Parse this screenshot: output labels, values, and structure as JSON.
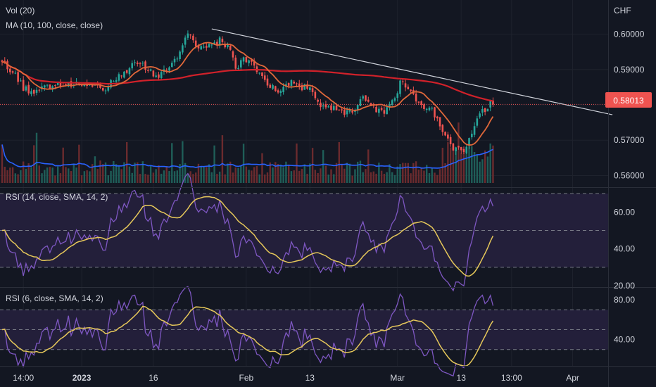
{
  "colors": {
    "background": "#131722",
    "candle_up": "#26a69a",
    "candle_down": "#ef5350",
    "ma_fast": "#e0683a",
    "ma_slow": "#d1212a",
    "trendline": "#d1d4dc",
    "price_line": "#ef5350",
    "rsi_line": "#7e57c2",
    "rsi_ma": "#e6c85a",
    "rsi_band": "#231f3a",
    "vol_ma": "#2962ff",
    "grid": "#1e222d"
  },
  "legend": {
    "volume": "Vol (20)",
    "ma": "MA (10, 100, close, close)",
    "rsi1": "RSI (14, close, SMA, 14, 2)",
    "rsi2": "RSI (6, close, SMA, 14, 2)"
  },
  "currency": "CHF",
  "price_badge": "0.58013",
  "chart_data": [
    {
      "type": "candlestick",
      "ylim": [
        0.5575,
        0.6045
      ],
      "yticks": [
        "0.60000",
        "0.59000",
        "0.58000",
        "0.57000",
        "0.56000"
      ],
      "last_price": 0.58013,
      "x_labels": [
        "14:00",
        "2023",
        "16",
        "Feb",
        "13",
        "Mar",
        "13",
        "13:00",
        "Apr"
      ],
      "anchors": [
        [
          0,
          0.592
        ],
        [
          4,
          0.589
        ],
        [
          8,
          0.585
        ],
        [
          12,
          0.5835
        ],
        [
          16,
          0.586
        ],
        [
          22,
          0.585
        ],
        [
          28,
          0.586
        ],
        [
          34,
          0.5855
        ],
        [
          38,
          0.5845
        ],
        [
          42,
          0.587
        ],
        [
          46,
          0.589
        ],
        [
          50,
          0.592
        ],
        [
          54,
          0.591
        ],
        [
          58,
          0.588
        ],
        [
          62,
          0.59
        ],
        [
          66,
          0.594
        ],
        [
          70,
          0.6005
        ],
        [
          74,
          0.5955
        ],
        [
          78,
          0.5965
        ],
        [
          82,
          0.5985
        ],
        [
          86,
          0.596
        ],
        [
          88,
          0.591
        ],
        [
          92,
          0.593
        ],
        [
          96,
          0.59
        ],
        [
          100,
          0.586
        ],
        [
          104,
          0.5835
        ],
        [
          108,
          0.5865
        ],
        [
          112,
          0.585
        ],
        [
          116,
          0.5845
        ],
        [
          120,
          0.58
        ],
        [
          124,
          0.579
        ],
        [
          128,
          0.578
        ],
        [
          132,
          0.5785
        ],
        [
          136,
          0.5815
        ],
        [
          140,
          0.5795
        ],
        [
          144,
          0.5775
        ],
        [
          148,
          0.582
        ],
        [
          150,
          0.586
        ],
        [
          154,
          0.584
        ],
        [
          158,
          0.58
        ],
        [
          162,
          0.5785
        ],
        [
          166,
          0.572
        ],
        [
          170,
          0.567
        ],
        [
          174,
          0.5675
        ],
        [
          178,
          0.574
        ],
        [
          182,
          0.579
        ],
        [
          185,
          0.5815
        ]
      ],
      "candles_count": 186,
      "seed": 7,
      "series": [
        {
          "name": "MA 10",
          "period": 10
        },
        {
          "name": "MA 100",
          "period": 100
        }
      ],
      "volume": {
        "ma_period": 20
      },
      "trendline": {
        "from": [
          79,
          0.6015
        ],
        "to": [
          230,
          0.5772
        ]
      }
    },
    {
      "type": "line",
      "title": "RSI (14, close, SMA, 14, 2)",
      "ylim": [
        20,
        72
      ],
      "yticks": [
        "60.00",
        "40.00",
        "20.00"
      ],
      "bands": [
        30,
        50,
        70
      ],
      "series": [
        {
          "name": "RSI"
        },
        {
          "name": "SMA"
        }
      ],
      "period": 14
    },
    {
      "type": "line",
      "title": "RSI (6, close, SMA, 14, 2)",
      "ylim": [
        15,
        90
      ],
      "yticks": [
        "80.00",
        "40.00"
      ],
      "bands": [
        30,
        50,
        70
      ],
      "series": [
        {
          "name": "RSI"
        },
        {
          "name": "SMA"
        }
      ],
      "period": 6
    }
  ]
}
